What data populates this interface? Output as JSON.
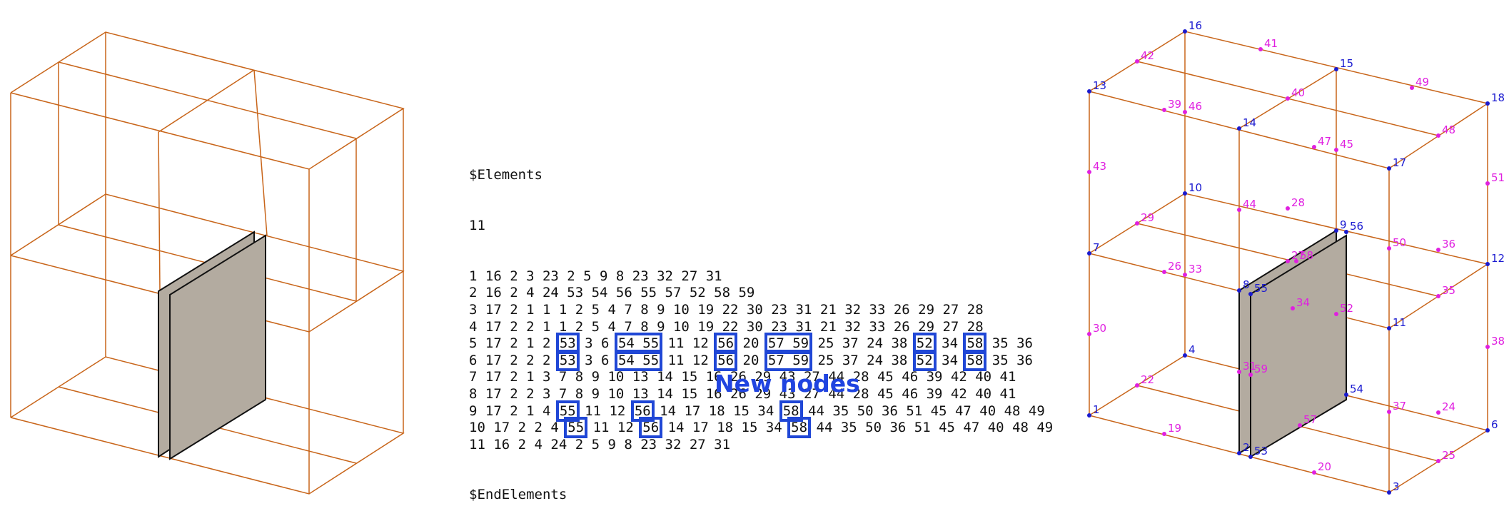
{
  "colors": {
    "edge": "#c8651a",
    "face_fill": "#b3aba0",
    "face_edge": "#111111",
    "highlight": "#2047d6",
    "corner_node": "#1a1ad0",
    "midside_node": "#e020e0"
  },
  "elements_listing": {
    "header": "$Elements",
    "count": "11",
    "footer": "$EndElements",
    "rows": [
      [
        {
          "t": "1 16 2 3 23 2 5 9 8 23 32 27 31"
        }
      ],
      [
        {
          "t": "2 16 2 4 24 53 54 56 55 57 52 58 59"
        }
      ],
      [
        {
          "t": "3 17 2 1 1 1 2 5 4 7 8 9 10 19 22 30 23 31 21 32 33 26 29 27 28"
        }
      ],
      [
        {
          "t": "4 17 2 2 1 1 2 5 4 7 8 9 10 19 22 30 23 31 21 32 33 26 29 27 28"
        }
      ],
      [
        {
          "t": "5 17 2 1 2 "
        },
        {
          "t": "53",
          "h": true
        },
        {
          "t": " 3 6 "
        },
        {
          "t": "54 55",
          "h": true
        },
        {
          "t": " 11 12 "
        },
        {
          "t": "56",
          "h": true
        },
        {
          "t": " 20 "
        },
        {
          "t": "57 59",
          "h": true
        },
        {
          "t": " 25 37 24 38 "
        },
        {
          "t": "52",
          "h": true
        },
        {
          "t": " 34 "
        },
        {
          "t": "58",
          "h": true
        },
        {
          "t": " 35 36"
        }
      ],
      [
        {
          "t": "6 17 2 2 2 "
        },
        {
          "t": "53",
          "h": true
        },
        {
          "t": " 3 6 "
        },
        {
          "t": "54 55",
          "h": true
        },
        {
          "t": " 11 12 "
        },
        {
          "t": "56",
          "h": true
        },
        {
          "t": " 20 "
        },
        {
          "t": "57 59",
          "h": true
        },
        {
          "t": " 25 37 24 38 "
        },
        {
          "t": "52",
          "h": true
        },
        {
          "t": " 34 "
        },
        {
          "t": "58",
          "h": true
        },
        {
          "t": " 35 36"
        }
      ],
      [
        {
          "t": "7 17 2 1 3 7 8 9 10 13 14 15 16 26 29 43 27 44 28 45 46 39 42 40 41"
        }
      ],
      [
        {
          "t": "8 17 2 2 3 7 8 9 10 13 14 15 16 26 29 43 27 44 28 45 46 39 42 40 41"
        }
      ],
      [
        {
          "t": "9 17 2 1 4 "
        },
        {
          "t": "55",
          "h": true
        },
        {
          "t": " 11 12 "
        },
        {
          "t": "56",
          "h": true
        },
        {
          "t": " 14 17 18 15 34 "
        },
        {
          "t": "58",
          "h": true
        },
        {
          "t": " 44 35 50 36 51 45 47 40 48 49"
        }
      ],
      [
        {
          "t": "10 17 2 2 4 "
        },
        {
          "t": "55",
          "h": true
        },
        {
          "t": " 11 12 "
        },
        {
          "t": "56",
          "h": true
        },
        {
          "t": " 14 17 18 15 34 "
        },
        {
          "t": "58",
          "h": true
        },
        {
          "t": " 44 35 50 36 51 45 47 40 48 49"
        }
      ],
      [
        {
          "t": "11 16 2 4 24 2 5 9 8 23 32 27 31"
        }
      ]
    ]
  },
  "caption": "New nodes",
  "corner_nodes": [
    "1",
    "2",
    "3",
    "4",
    "6",
    "7",
    "8",
    "9",
    "10",
    "11",
    "12",
    "13",
    "14",
    "15",
    "16",
    "17",
    "18",
    "53",
    "54",
    "55",
    "56"
  ],
  "midside_nodes": [
    "19",
    "20",
    "22",
    "24",
    "25",
    "26",
    "27",
    "28",
    "29",
    "30",
    "31",
    "33",
    "34",
    "35",
    "36",
    "37",
    "38",
    "39",
    "40",
    "41",
    "42",
    "43",
    "44",
    "45",
    "46",
    "47",
    "48",
    "49",
    "50",
    "51",
    "52",
    "57",
    "58",
    "59"
  ]
}
